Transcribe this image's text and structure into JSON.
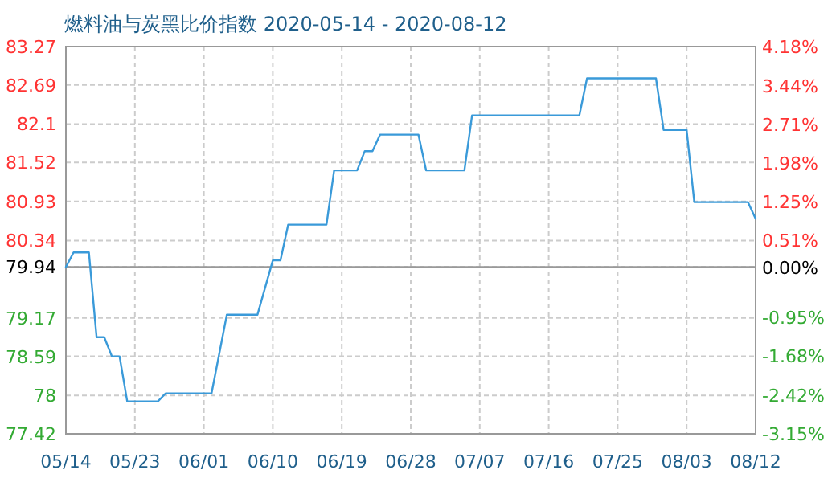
{
  "chart_data": {
    "type": "line",
    "title": "燃料油与炭黑比价指数 2020-05-14 - 2020-08-12",
    "x": [
      "2020-05-14",
      "2020-05-15",
      "2020-05-17",
      "2020-05-18",
      "2020-05-19",
      "2020-05-20",
      "2020-05-21",
      "2020-05-22",
      "2020-05-26",
      "2020-05-27",
      "2020-06-02",
      "2020-06-04",
      "2020-06-08",
      "2020-06-10",
      "2020-06-11",
      "2020-06-12",
      "2020-06-17",
      "2020-06-18",
      "2020-06-21",
      "2020-06-22",
      "2020-06-23",
      "2020-06-24",
      "2020-06-29",
      "2020-06-30",
      "2020-07-05",
      "2020-07-06",
      "2020-07-20",
      "2020-07-21",
      "2020-07-30",
      "2020-07-31",
      "2020-08-03",
      "2020-08-04",
      "2020-08-11",
      "2020-08-12"
    ],
    "series": [
      {
        "color": "#3a9ad9",
        "values": [
          79.94,
          80.16,
          80.16,
          78.88,
          78.88,
          78.59,
          78.59,
          77.91,
          77.91,
          78.03,
          78.03,
          79.22,
          79.22,
          80.04,
          80.04,
          80.58,
          80.58,
          81.4,
          81.4,
          81.69,
          81.69,
          81.94,
          81.94,
          81.4,
          81.4,
          82.23,
          82.23,
          82.79,
          82.79,
          82.01,
          82.01,
          80.92,
          80.92,
          80.67
        ]
      }
    ],
    "xlim": [
      "2020-05-14",
      "2020-08-12"
    ],
    "xticks": [
      {
        "value": "2020-05-14",
        "label": "05/14"
      },
      {
        "value": "2020-05-23",
        "label": "05/23"
      },
      {
        "value": "2020-06-01",
        "label": "06/01"
      },
      {
        "value": "2020-06-10",
        "label": "06/10"
      },
      {
        "value": "2020-06-19",
        "label": "06/19"
      },
      {
        "value": "2020-06-28",
        "label": "06/28"
      },
      {
        "value": "2020-07-07",
        "label": "07/07"
      },
      {
        "value": "2020-07-16",
        "label": "07/16"
      },
      {
        "value": "2020-07-25",
        "label": "07/25"
      },
      {
        "value": "2020-08-03",
        "label": "08/03"
      },
      {
        "value": "2020-08-12",
        "label": "08/12"
      }
    ],
    "ylim": [
      77.42,
      83.27
    ],
    "yticks": [
      77.42,
      78,
      78.59,
      79.17,
      79.94,
      80.34,
      80.93,
      81.52,
      82.1,
      82.69,
      83.27
    ],
    "y2lim": [
      -3.15,
      4.18
    ],
    "y2ticks": [
      {
        "value": -3.15,
        "label": "-3.15%"
      },
      {
        "value": -2.42,
        "label": "-2.42%"
      },
      {
        "value": -1.68,
        "label": "-1.68%"
      },
      {
        "value": -0.95,
        "label": "-0.95%"
      },
      {
        "value": 0,
        "label": "0.00%"
      },
      {
        "value": 0.51,
        "label": "0.51%"
      },
      {
        "value": 1.25,
        "label": "1.25%"
      },
      {
        "value": 1.98,
        "label": "1.98%"
      },
      {
        "value": 2.71,
        "label": "2.71%"
      },
      {
        "value": 3.44,
        "label": "3.44%"
      },
      {
        "value": 4.18,
        "label": "4.18%"
      }
    ],
    "ref_lines": [
      {
        "axis": "y",
        "value": 79.94,
        "color": "#999999"
      }
    ],
    "grid": true
  }
}
